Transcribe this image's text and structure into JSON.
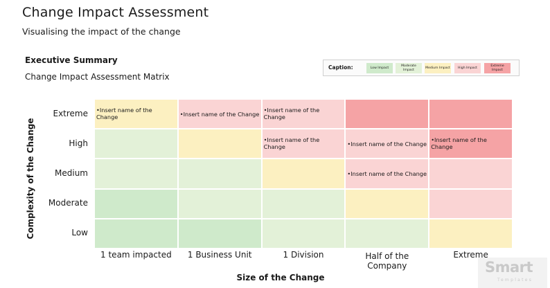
{
  "header": {
    "title": "Change Impact Assessment",
    "subtitle": "Visualising the impact of the change",
    "section_title": "Executive Summary",
    "section_subtitle": "Change Impact Assessment Matrix"
  },
  "caption": {
    "title": "Caption:",
    "items": [
      {
        "label": "Low Impact",
        "color": "#cfeacb"
      },
      {
        "label": "Moderate Impact",
        "color": "#e3f1d8"
      },
      {
        "label": "Medium Impact",
        "color": "#fcf0c1"
      },
      {
        "label": "High Impact",
        "color": "#fad4d4"
      },
      {
        "label": "Extreme Impact",
        "color": "#f5a3a5"
      }
    ]
  },
  "matrix": {
    "y_axis_title": "Complexity of the Change",
    "x_axis_title": "Size of the Change",
    "rows": [
      "Extreme",
      "High",
      "Medium",
      "Moderate",
      "Low"
    ],
    "columns": [
      "1 team impacted",
      "1 Business Unit",
      "1 Division",
      "Half of the Company",
      "Extreme"
    ],
    "cells": [
      [
        {
          "text": "•Insert name of the Change",
          "color": "#fcf0c1"
        },
        {
          "text": "•Insert name of the Change",
          "color": "#fad4d4"
        },
        {
          "text": "•Insert name of the Change",
          "color": "#fad4d4"
        },
        {
          "text": "",
          "color": "#f5a3a5"
        },
        {
          "text": "",
          "color": "#f5a3a5"
        }
      ],
      [
        {
          "text": "",
          "color": "#e3f1d8"
        },
        {
          "text": "",
          "color": "#fcf0c1"
        },
        {
          "text": "•Insert name of the Change",
          "color": "#fad4d4"
        },
        {
          "text": "•Insert name of the Change",
          "color": "#fad4d4"
        },
        {
          "text": "•Insert name of the Change",
          "color": "#f5a3a5"
        }
      ],
      [
        {
          "text": "",
          "color": "#e3f1d8"
        },
        {
          "text": "",
          "color": "#e3f1d8"
        },
        {
          "text": "",
          "color": "#fcf0c1"
        },
        {
          "text": "•Insert name of the Change",
          "color": "#fad4d4"
        },
        {
          "text": "",
          "color": "#fad4d4"
        }
      ],
      [
        {
          "text": "",
          "color": "#cfeacb"
        },
        {
          "text": "",
          "color": "#e3f1d8"
        },
        {
          "text": "",
          "color": "#e3f1d8"
        },
        {
          "text": "",
          "color": "#fcf0c1"
        },
        {
          "text": "",
          "color": "#fad4d4"
        }
      ],
      [
        {
          "text": "",
          "color": "#cfeacb"
        },
        {
          "text": "",
          "color": "#cfeacb"
        },
        {
          "text": "",
          "color": "#e3f1d8"
        },
        {
          "text": "",
          "color": "#e3f1d8"
        },
        {
          "text": "",
          "color": "#fcf0c1"
        }
      ]
    ]
  },
  "logo": {
    "main": "Smart",
    "sub": "Templates"
  }
}
